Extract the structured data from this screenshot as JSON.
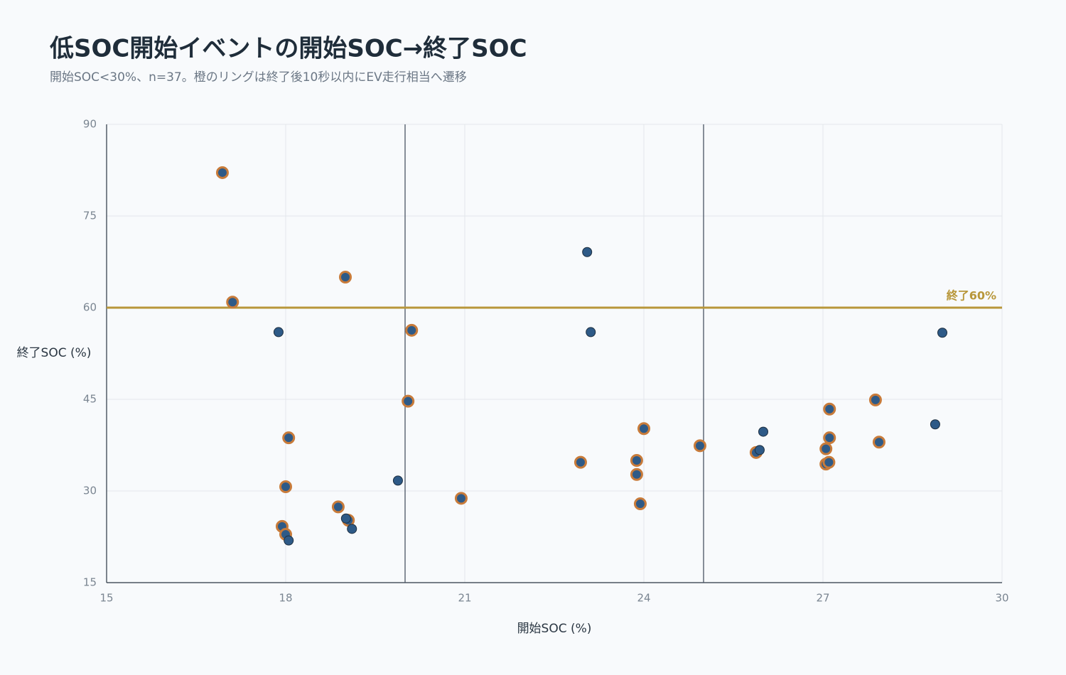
{
  "chart_data": {
    "type": "scatter",
    "title": "低SOC開始イベントの開始SOC→終了SOC",
    "subtitle": "開始SOC<30%、n=37。橙のリングは終了後10秒以内にEV走行相当へ遷移",
    "x_label": "開始SOC (%)",
    "y_label": "終了SOC (%)",
    "xlim": [
      15,
      30
    ],
    "xticks": [
      15,
      18,
      21,
      24,
      27,
      30
    ],
    "ylim": [
      15,
      90
    ],
    "yticks": [
      15,
      30,
      45,
      60,
      75,
      90
    ],
    "grid": true,
    "series": [
      {
        "color": "#2e5a87",
        "edge": "#c87b3a",
        "x": [
          16.94,
          17.11,
          19.0,
          20.11,
          20.05,
          18.05,
          18.0,
          17.94,
          18.0,
          18.88,
          19.05,
          20.94,
          22.94,
          23.88,
          23.88,
          23.94,
          24.0,
          24.94,
          25.88,
          27.05,
          27.05,
          27.1,
          27.11,
          27.11,
          27.88,
          27.94
        ],
        "values": [
          82.1,
          60.9,
          65.0,
          56.3,
          44.7,
          38.7,
          30.7,
          24.2,
          22.9,
          27.4,
          25.2,
          28.8,
          34.7,
          35.0,
          32.7,
          27.9,
          40.2,
          37.4,
          36.3,
          36.9,
          34.4,
          34.7,
          43.4,
          38.7,
          44.9,
          38.0
        ]
      },
      {
        "color": "#2e5a87",
        "edge": "#1e2f40",
        "x": [
          23.05,
          23.11,
          17.88,
          19.88,
          19.01,
          19.11,
          18.05,
          26.0,
          25.94,
          29.0,
          28.88
        ],
        "values": [
          69.1,
          56.0,
          56.0,
          31.7,
          25.5,
          23.8,
          21.9,
          39.7,
          36.7,
          55.9,
          40.9
        ]
      }
    ],
    "hlines": [
      {
        "value": 60,
        "label": "終了60%",
        "color": "#b8973a"
      }
    ],
    "vlines": [
      {
        "value": 20,
        "color": "#4a5563"
      },
      {
        "value": 25,
        "color": "#4a5563"
      }
    ]
  }
}
